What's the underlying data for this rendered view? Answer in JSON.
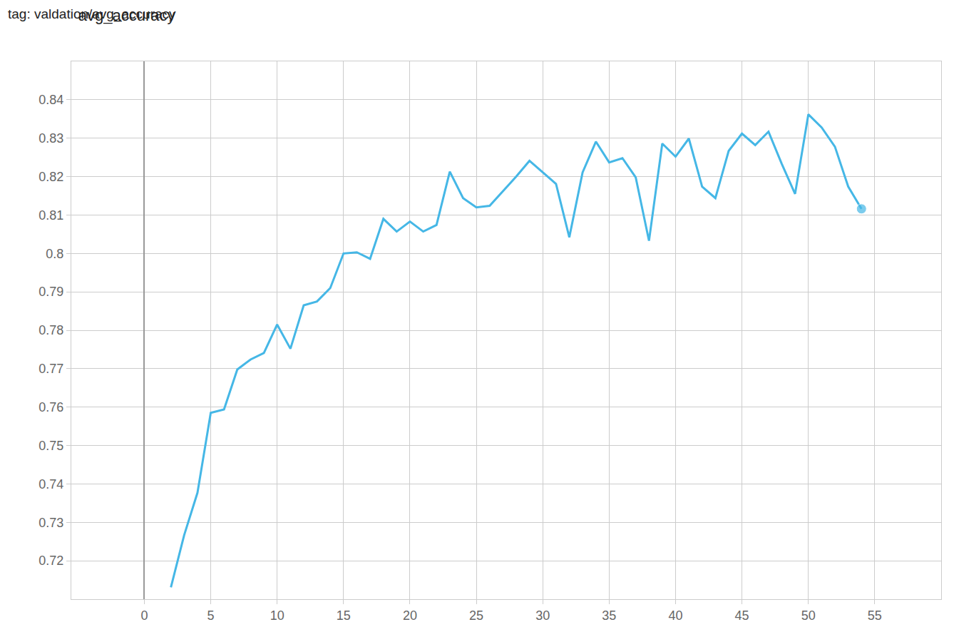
{
  "chart_data": {
    "type": "line",
    "title": "avg_accuracy",
    "subtitle": "tag: valdation/avg_accuracy",
    "x": [
      2,
      3,
      4,
      5,
      6,
      7,
      8,
      9,
      10,
      11,
      12,
      13,
      14,
      15,
      16,
      17,
      18,
      19,
      20,
      21,
      22,
      23,
      24,
      25,
      26,
      27,
      28,
      29,
      30,
      31,
      32,
      33,
      34,
      35,
      36,
      37,
      38,
      39,
      40,
      41,
      42,
      43,
      44,
      45,
      46,
      47,
      48,
      49,
      50,
      51,
      52,
      53,
      54
    ],
    "values": [
      0.7131,
      0.7267,
      0.7377,
      0.7585,
      0.7594,
      0.7698,
      0.7724,
      0.7741,
      0.7815,
      0.7752,
      0.7865,
      0.7875,
      0.791,
      0.8,
      0.8003,
      0.7986,
      0.809,
      0.8057,
      0.8083,
      0.8057,
      0.8074,
      0.8213,
      0.8144,
      0.812,
      0.8124,
      0.8162,
      0.82,
      0.8241,
      0.8211,
      0.8181,
      0.8042,
      0.8211,
      0.8291,
      0.8237,
      0.8248,
      0.8198,
      0.8033,
      0.8286,
      0.8252,
      0.8299,
      0.8174,
      0.8144,
      0.8267,
      0.8312,
      0.8282,
      0.8317,
      0.8233,
      0.8155,
      0.8362,
      0.8328,
      0.8278,
      0.8174,
      0.8116
    ],
    "color": "#45b7e6",
    "marker": "last",
    "xlim": [
      -5.5,
      60
    ],
    "xticks": [
      0,
      5,
      10,
      15,
      20,
      25,
      30,
      35,
      40,
      45,
      50,
      55
    ],
    "ylim": [
      0.71,
      0.85
    ],
    "yticks": [
      0.72,
      0.73,
      0.74,
      0.75,
      0.76,
      0.77,
      0.78,
      0.79,
      0.8,
      0.81,
      0.82,
      0.83,
      0.84
    ],
    "grid": true
  }
}
